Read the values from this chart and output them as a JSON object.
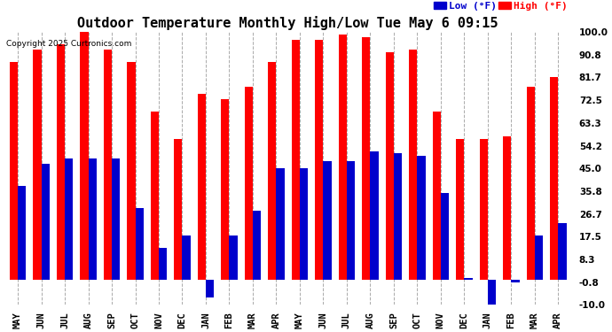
{
  "title": "Outdoor Temperature Monthly High/Low Tue May 6 09:15",
  "copyright": "Copyright 2025 Curtronics.com",
  "legend_low": "Low (°F)",
  "legend_high": "High (°F)",
  "months": [
    "MAY",
    "JUN",
    "JUL",
    "AUG",
    "SEP",
    "OCT",
    "NOV",
    "DEC",
    "JAN",
    "FEB",
    "MAR",
    "APR",
    "MAY",
    "JUN",
    "JUL",
    "AUG",
    "SEP",
    "OCT",
    "NOV",
    "DEC",
    "JAN",
    "FEB",
    "MAR",
    "APR"
  ],
  "high_values": [
    88,
    93,
    95,
    104,
    93,
    88,
    68,
    57,
    75,
    73,
    78,
    88,
    97,
    97,
    99,
    98,
    92,
    93,
    68,
    57,
    57,
    58,
    78,
    82
  ],
  "low_values": [
    38,
    47,
    49,
    49,
    49,
    29,
    13,
    18,
    -7,
    18,
    28,
    45,
    45,
    48,
    48,
    52,
    51,
    50,
    35,
    1,
    -10,
    -1,
    18,
    23
  ],
  "ylim": [
    -10,
    100
  ],
  "yticks": [
    100.0,
    90.8,
    81.7,
    72.5,
    63.3,
    54.2,
    45.0,
    35.8,
    26.7,
    17.5,
    8.3,
    -0.8,
    -10.0
  ],
  "bar_width": 0.35,
  "high_color": "#FF0000",
  "low_color": "#0000CC",
  "bg_color": "#FFFFFF",
  "grid_color": "#AAAAAA",
  "title_fontsize": 11,
  "tick_fontsize": 7.5
}
